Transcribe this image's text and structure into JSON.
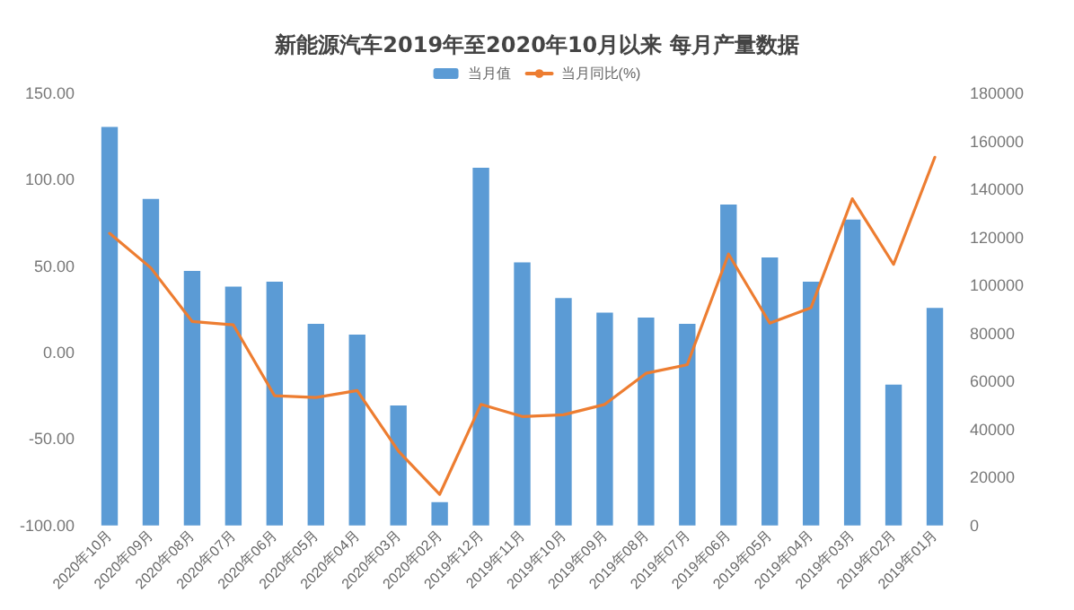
{
  "chart_data": {
    "type": "bar",
    "title": "新能源汽车2019年至2020年10月以来 每月产量数据",
    "categories": [
      "2020年10月",
      "2020年09月",
      "2020年08月",
      "2020年07月",
      "2020年06月",
      "2020年05月",
      "2020年04月",
      "2020年03月",
      "2020年02月",
      "2019年12月",
      "2019年11月",
      "2019年10月",
      "2019年09月",
      "2019年08月",
      "2019年07月",
      "2019年06月",
      "2019年05月",
      "2019年04月",
      "2019年03月",
      "2019年02月",
      "2019年01月"
    ],
    "series": [
      {
        "name": "当月值",
        "axis": "y2",
        "color": "#5b9bd5",
        "values": [
          166000,
          136000,
          106000,
          99500,
          101500,
          84000,
          79500,
          50000,
          9700,
          149000,
          109600,
          94700,
          88600,
          86600,
          84000,
          133700,
          111600,
          101500,
          127400,
          58700,
          90600
        ]
      },
      {
        "name": "当月同比(%)",
        "type": "line",
        "color": "#ed7d31",
        "values": [
          69,
          49,
          18,
          16,
          -25,
          -26,
          -22,
          -57,
          -82,
          -30,
          -37,
          -36,
          -30,
          -12,
          -7,
          57,
          17,
          26,
          89,
          51,
          113
        ]
      }
    ],
    "ylim": [
      -100,
      150
    ],
    "yticks": [
      {
        "value": -100,
        "label": "-100.00"
      },
      {
        "value": -50,
        "label": "-50.00"
      },
      {
        "value": 0,
        "label": "0.00"
      },
      {
        "value": 50,
        "label": "50.00"
      },
      {
        "value": 100,
        "label": "100.00"
      },
      {
        "value": 150,
        "label": "150.00"
      }
    ],
    "y2lim": [
      0,
      180000
    ],
    "y2ticks": [
      0,
      20000,
      40000,
      60000,
      80000,
      100000,
      120000,
      140000,
      160000,
      180000
    ],
    "legend": "top",
    "grid": false,
    "marker": "none",
    "line_style": "solid"
  }
}
